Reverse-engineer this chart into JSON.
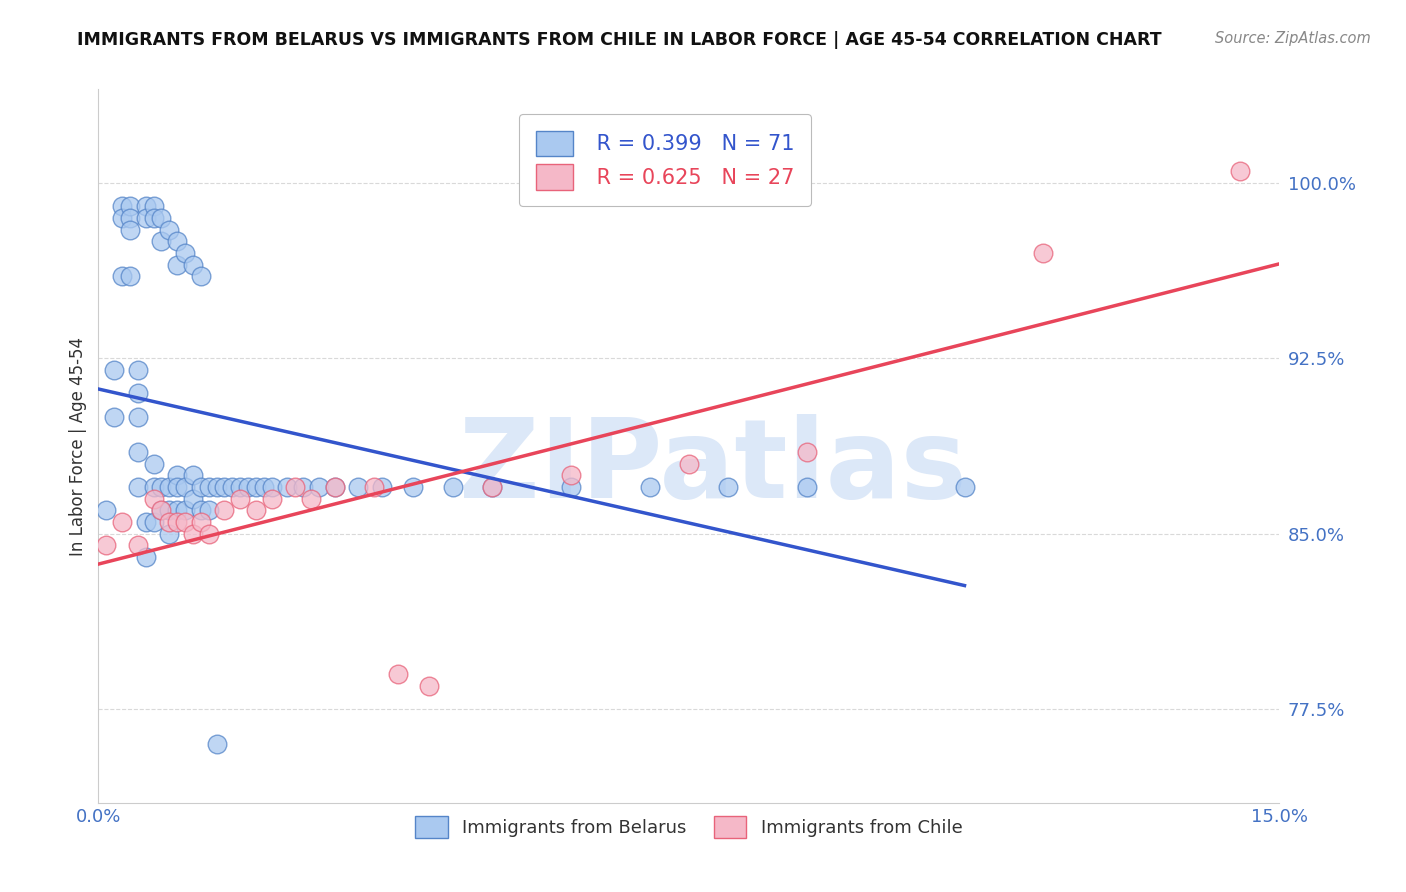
{
  "title": "IMMIGRANTS FROM BELARUS VS IMMIGRANTS FROM CHILE IN LABOR FORCE | AGE 45-54 CORRELATION CHART",
  "source": "Source: ZipAtlas.com",
  "ylabel": "In Labor Force | Age 45-54",
  "x_min": 0.0,
  "x_max": 0.15,
  "y_min": 0.735,
  "y_max": 1.04,
  "y_ticks": [
    0.775,
    0.85,
    0.925,
    1.0
  ],
  "y_tick_labels": [
    "77.5%",
    "85.0%",
    "92.5%",
    "100.0%"
  ],
  "x_tick_positions": [
    0.0,
    0.05,
    0.1,
    0.15
  ],
  "x_tick_labels": [
    "0.0%",
    "",
    "",
    "15.0%"
  ],
  "tick_color": "#4472c4",
  "blue_color": "#aac9f0",
  "pink_color": "#f5b8c8",
  "blue_edge_color": "#5585c8",
  "pink_edge_color": "#e8637a",
  "blue_line_color": "#3355cc",
  "pink_line_color": "#e8455a",
  "legend_blue_r": "R = 0.399",
  "legend_blue_n": "N = 71",
  "legend_pink_r": "R = 0.625",
  "legend_pink_n": "N = 27",
  "watermark": "ZIPatlas",
  "watermark_blue": "#dce8f8",
  "watermark_pink": "#f5dde3",
  "background_color": "#ffffff",
  "blue_scatter_x": [
    0.001,
    0.002,
    0.002,
    0.003,
    0.003,
    0.003,
    0.004,
    0.004,
    0.004,
    0.004,
    0.005,
    0.005,
    0.005,
    0.005,
    0.005,
    0.006,
    0.006,
    0.006,
    0.006,
    0.007,
    0.007,
    0.007,
    0.007,
    0.007,
    0.008,
    0.008,
    0.008,
    0.008,
    0.009,
    0.009,
    0.009,
    0.009,
    0.01,
    0.01,
    0.01,
    0.01,
    0.01,
    0.011,
    0.011,
    0.011,
    0.012,
    0.012,
    0.012,
    0.013,
    0.013,
    0.013,
    0.014,
    0.014,
    0.015,
    0.015,
    0.016,
    0.017,
    0.018,
    0.019,
    0.02,
    0.021,
    0.022,
    0.024,
    0.026,
    0.028,
    0.03,
    0.033,
    0.036,
    0.04,
    0.045,
    0.05,
    0.06,
    0.07,
    0.08,
    0.09,
    0.11
  ],
  "blue_scatter_y": [
    0.86,
    0.92,
    0.9,
    0.99,
    0.985,
    0.96,
    0.99,
    0.985,
    0.98,
    0.96,
    0.92,
    0.91,
    0.9,
    0.885,
    0.87,
    0.99,
    0.985,
    0.855,
    0.84,
    0.99,
    0.985,
    0.88,
    0.87,
    0.855,
    0.985,
    0.975,
    0.87,
    0.86,
    0.98,
    0.87,
    0.86,
    0.85,
    0.975,
    0.965,
    0.875,
    0.87,
    0.86,
    0.97,
    0.87,
    0.86,
    0.965,
    0.875,
    0.865,
    0.96,
    0.87,
    0.86,
    0.87,
    0.86,
    0.87,
    0.76,
    0.87,
    0.87,
    0.87,
    0.87,
    0.87,
    0.87,
    0.87,
    0.87,
    0.87,
    0.87,
    0.87,
    0.87,
    0.87,
    0.87,
    0.87,
    0.87,
    0.87,
    0.87,
    0.87,
    0.87,
    0.87
  ],
  "pink_scatter_x": [
    0.001,
    0.003,
    0.005,
    0.007,
    0.008,
    0.009,
    0.01,
    0.011,
    0.012,
    0.013,
    0.014,
    0.016,
    0.018,
    0.02,
    0.022,
    0.025,
    0.027,
    0.03,
    0.035,
    0.038,
    0.042,
    0.05,
    0.06,
    0.075,
    0.09,
    0.12,
    0.145
  ],
  "pink_scatter_y": [
    0.845,
    0.855,
    0.845,
    0.865,
    0.86,
    0.855,
    0.855,
    0.855,
    0.85,
    0.855,
    0.85,
    0.86,
    0.865,
    0.86,
    0.865,
    0.87,
    0.865,
    0.87,
    0.87,
    0.79,
    0.785,
    0.87,
    0.875,
    0.88,
    0.885,
    0.97,
    1.005
  ]
}
